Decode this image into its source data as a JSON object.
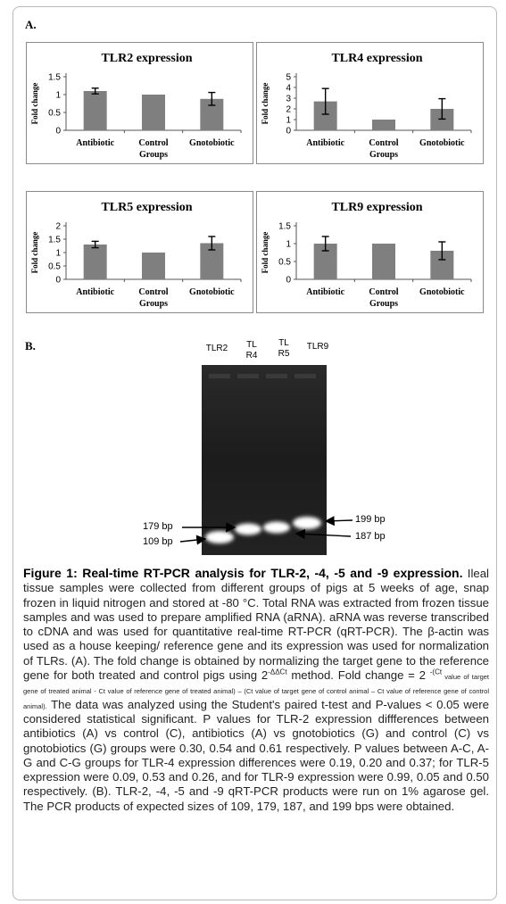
{
  "panel_a_label": "A.",
  "panel_b_label": "B.",
  "chart_data": [
    {
      "type": "bar",
      "title": "TLR2 expression",
      "ylabel": "Fold change",
      "xlabel": "Groups",
      "categories": [
        "Antibiotic",
        "Control",
        "Gnotobiotic"
      ],
      "values": [
        1.1,
        1.0,
        0.88
      ],
      "errors": [
        0.08,
        0.0,
        0.18
      ],
      "ylim": [
        0,
        1.5
      ],
      "yticks": [
        "0",
        "0.5",
        "1",
        "1.5"
      ],
      "ytick_values": [
        0,
        0.5,
        1,
        1.5
      ],
      "bar_color": "#7f7f7f"
    },
    {
      "type": "bar",
      "title": "TLR4 expression",
      "ylabel": "Fold change",
      "xlabel": "Groups",
      "categories": [
        "Antibiotic",
        "Control",
        "Gnotobiotic"
      ],
      "values": [
        2.7,
        1.0,
        2.0
      ],
      "errors": [
        1.2,
        0.0,
        0.95
      ],
      "ylim": [
        0,
        5
      ],
      "yticks": [
        "0",
        "1",
        "2",
        "3",
        "4",
        "5"
      ],
      "ytick_values": [
        0,
        1,
        2,
        3,
        4,
        5
      ],
      "bar_color": "#7f7f7f"
    },
    {
      "type": "bar",
      "title": "TLR5 expression",
      "ylabel": "Fold change",
      "xlabel": "Groups",
      "categories": [
        "Antibiotic",
        "Control",
        "Gnotobiotic"
      ],
      "values": [
        1.3,
        1.0,
        1.35
      ],
      "errors": [
        0.12,
        0.0,
        0.25
      ],
      "ylim": [
        0,
        2
      ],
      "yticks": [
        "0",
        "0.5",
        "1",
        "1.5",
        "2"
      ],
      "ytick_values": [
        0,
        0.5,
        1,
        1.5,
        2
      ],
      "bar_color": "#7f7f7f"
    },
    {
      "type": "bar",
      "title": "TLR9 expression",
      "ylabel": "Fold change",
      "xlabel": "Groups",
      "categories": [
        "Antibiotic",
        "Control",
        "Gnotobiotic"
      ],
      "values": [
        1.0,
        1.0,
        0.8
      ],
      "errors": [
        0.2,
        0.0,
        0.25
      ],
      "ylim": [
        0,
        1.5
      ],
      "yticks": [
        "0",
        "0.5",
        "1",
        "1.5"
      ],
      "ytick_values": [
        0,
        0.5,
        1,
        1.5
      ],
      "bar_color": "#7f7f7f"
    }
  ],
  "gel": {
    "lane_labels": [
      "TLR2",
      "TL\nR4",
      "TL\nR5",
      "TLR9"
    ],
    "bp_left": [
      "179 bp",
      "109 bp"
    ],
    "bp_right": [
      "199 bp",
      "187 bp"
    ]
  },
  "caption": {
    "title": "Figure 1: Real-time RT-PCR analysis for TLR-2, -4, -5 and -9 expression.",
    "p1": "Ileal tissue samples were collected from different groups of pigs at 5 weeks of age, snap frozen in liquid nitrogen and stored at -80 °C. Total RNA was extracted from frozen tissue samples and was used to prepare amplified RNA (aRNA). aRNA was reverse transcribed to cDNA and was used for quantitative real-time RT-PCR (qRT-PCR). The β-actin was used as a house keeping/ reference gene and its expression was used for normalization of TLRs. (A). The fold change is obtained by normalizing the target gene to the reference gene for both treated and control pigs using 2",
    "sup1": "-ΔΔCt",
    "p2": " method. Fold change = 2 ",
    "sup2": "-(Ct",
    "tiny": " value of target gene of treated animal - Ct value of reference gene of treated animal) – (Ct value of target gene of control animal – Ct value of reference gene of control animal).",
    "p3": " The data was analyzed using the Student's paired t-test and P-values < 0.05 were considered statistical significant. P values for TLR-2 expression diffferences between antibiotics (A) vs control (C), antibiotics (A) vs gnotobiotics (G) and control (C) vs gnotobiotics (G) groups were 0.30, 0.54 and 0.61 respectively. P values between A-C, A-G and C-G groups for TLR-4 expression differences were 0.19, 0.20 and 0.37; for TLR-5 expression were 0.09, 0.53 and 0.26, and for TLR-9 expression were 0.99, 0.05 and 0.50 respectively. (B). TLR-2, -4, -5 and -9 qRT-PCR products were run on 1% agarose gel. The PCR products of expected sizes of 109, 179, 187, and 199 bps were obtained."
  }
}
